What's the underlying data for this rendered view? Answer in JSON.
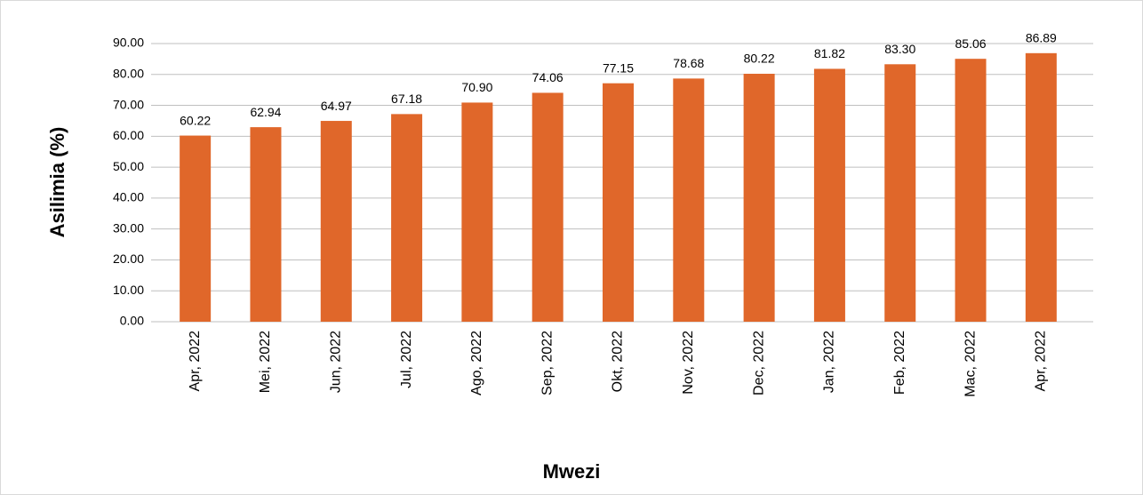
{
  "chart_data": {
    "type": "bar",
    "xlabel": "Mwezi",
    "ylabel": "Asilimia (%)",
    "categories": [
      "Apr, 2022",
      "Mei, 2022",
      "Jun, 2022",
      "Jul, 2022",
      "Ago, 2022",
      "Sep, 2022",
      "Okt, 2022",
      "Nov, 2022",
      "Dec, 2022",
      "Jan, 2022",
      "Feb, 2022",
      "Mac, 2022",
      "Apr, 2022"
    ],
    "values": [
      60.22,
      62.94,
      64.97,
      67.18,
      70.9,
      74.06,
      77.15,
      78.68,
      80.22,
      81.82,
      83.3,
      85.06,
      86.89
    ],
    "value_labels": [
      "60.22",
      "62.94",
      "64.97",
      "67.18",
      "70.90",
      "74.06",
      "77.15",
      "78.68",
      "80.22",
      "81.82",
      "83.30",
      "85.06",
      "86.89"
    ],
    "color": "#e0672a",
    "ylim": [
      0,
      90
    ],
    "yticks": [
      {
        "value": 0,
        "label": "0.00"
      },
      {
        "value": 10,
        "label": "10.00"
      },
      {
        "value": 20,
        "label": "20.00"
      },
      {
        "value": 30,
        "label": "30.00"
      },
      {
        "value": 40,
        "label": "40.00"
      },
      {
        "value": 50,
        "label": "50.00"
      },
      {
        "value": 60,
        "label": "60.00"
      },
      {
        "value": 70,
        "label": "70.00"
      },
      {
        "value": 80,
        "label": "80.00"
      },
      {
        "value": 90,
        "label": "90.00"
      }
    ],
    "grid": true
  }
}
